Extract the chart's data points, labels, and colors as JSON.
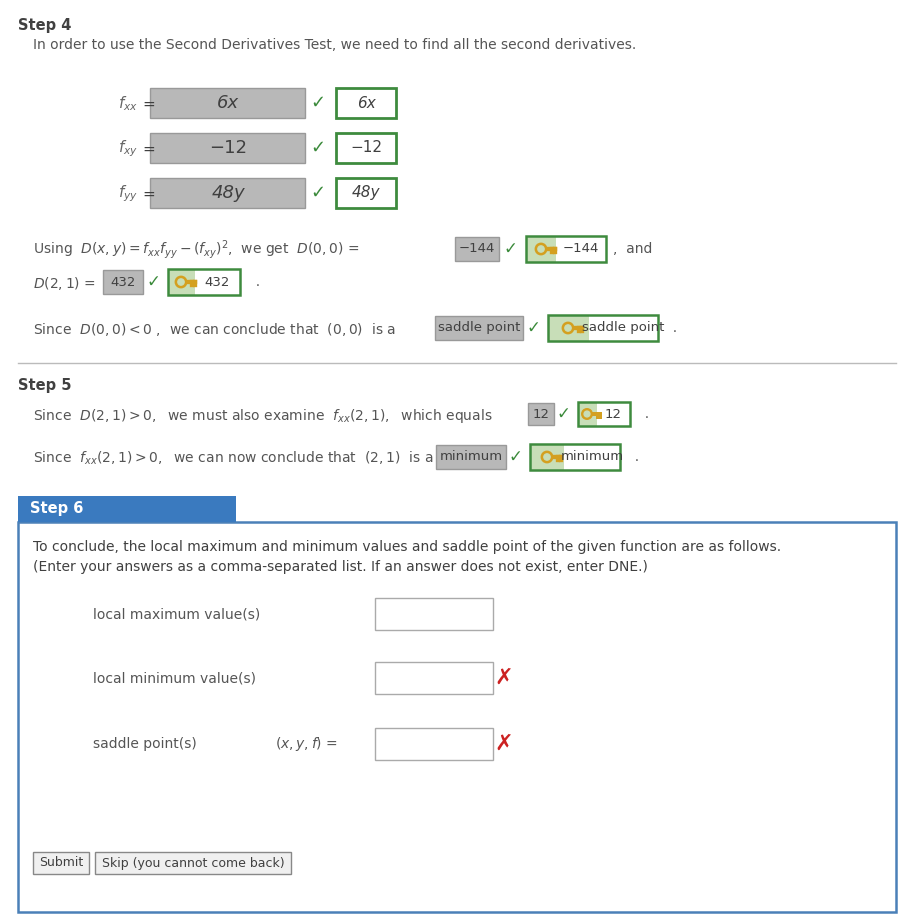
{
  "bg_color": "#ffffff",
  "step4_label": "Step 4",
  "step4_intro": "In order to use the Second Derivatives Test, we need to find all the second derivatives.",
  "fxx_box_text": "6x",
  "fxx_answer": "6x",
  "fxy_box_text": "−12",
  "fxy_answer": "−12",
  "fyy_box_text": "48y",
  "fyy_answer": "48y",
  "d00_box": "−144",
  "d00_answer": "−144",
  "d21_box": "432",
  "d21_answer": "432",
  "saddle_box": "saddle point",
  "saddle_answer": "saddle point",
  "step5_label": "Step 5",
  "fxx21_box": "12",
  "fxx21_answer": "12",
  "min_box": "minimum",
  "min_answer": "minimum",
  "step6_label": "Step 6",
  "step6_header_bg": "#3a7abf",
  "step6_border": "#4a80b8",
  "step6_line1": "To conclude, the local maximum and minimum values and saddle point of the given function are as follows.",
  "step6_line2": "(Enter your answers as a comma-separated list. If an answer does not exist, enter DNE.)",
  "local_max_label": "local maximum value(s)",
  "local_min_label": "local minimum value(s)",
  "saddle_pt_label": "saddle point(s)",
  "submit_btn": "Submit",
  "skip_btn": "Skip (you cannot come back)",
  "green_check": "✓",
  "red_x": "✗",
  "gray_box_bg": "#b8b8b8",
  "gray_box_edge": "#999999",
  "green_border": "#3e8b3e",
  "key_bg_left": "#c8deb8",
  "key_bg_right": "#f0f8e8",
  "text_dark": "#404040",
  "text_mid": "#555555",
  "text_blue": "#3366aa"
}
